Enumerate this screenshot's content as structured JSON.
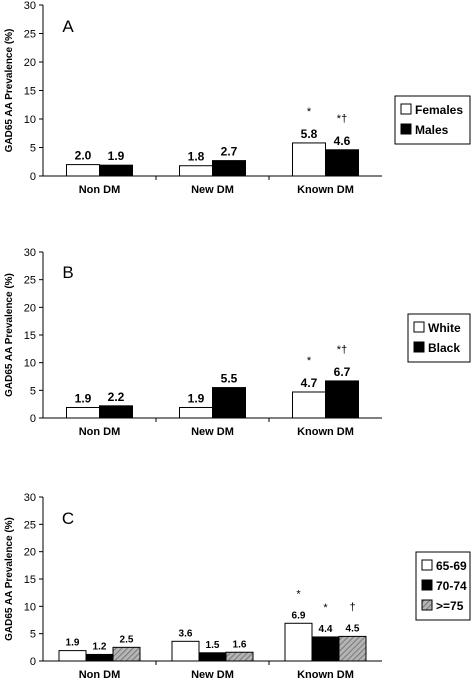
{
  "chart_data": [
    {
      "type": "bar",
      "panel_label": "A",
      "ylabel": "GAD65 AA Prevalence  (%)",
      "ylim": [
        0,
        30
      ],
      "yticks": [
        "0",
        "5",
        "10",
        "15",
        "20",
        "25",
        "30"
      ],
      "categories": [
        "Non DM",
        "New DM",
        "Known DM"
      ],
      "series": [
        {
          "name": "Females",
          "values": [
            2.0,
            1.8,
            5.8
          ],
          "labels": [
            "2.0",
            "1.8",
            "5.8"
          ],
          "color": "#ffffff"
        },
        {
          "name": "Males",
          "values": [
            1.9,
            2.7,
            4.6
          ],
          "labels": [
            "1.9",
            "2.7",
            "4.6"
          ],
          "color": "#000000"
        }
      ],
      "annotations": [
        {
          "category": 2,
          "series": 0,
          "text": "*"
        },
        {
          "category": 2,
          "series": 1,
          "text": "*†"
        }
      ],
      "legend": "right"
    },
    {
      "type": "bar",
      "panel_label": "B",
      "ylabel": "GAD65 AA Prevalence   (%)",
      "ylim": [
        0,
        30
      ],
      "yticks": [
        "0",
        "5",
        "10",
        "15",
        "20",
        "25",
        "30"
      ],
      "categories": [
        "Non DM",
        "New DM",
        "Known DM"
      ],
      "series": [
        {
          "name": "White",
          "values": [
            1.9,
            1.9,
            4.7
          ],
          "labels": [
            "1.9",
            "1.9",
            "4.7"
          ],
          "color": "#ffffff"
        },
        {
          "name": "Black",
          "values": [
            2.2,
            5.5,
            6.7
          ],
          "labels": [
            "2.2",
            "5.5",
            "6.7"
          ],
          "color": "#000000"
        }
      ],
      "annotations": [
        {
          "category": 2,
          "series": 0,
          "text": "*"
        },
        {
          "category": 2,
          "series": 1,
          "text": "*†"
        }
      ],
      "legend": "right"
    },
    {
      "type": "bar",
      "panel_label": "C",
      "ylabel": "GAD65 AA Prevalence   (%)",
      "ylim": [
        0,
        30
      ],
      "yticks": [
        "0",
        "5",
        "10",
        "15",
        "20",
        "25",
        "30"
      ],
      "categories": [
        "Non DM",
        "New DM",
        "Known DM"
      ],
      "series": [
        {
          "name": "65-69",
          "values": [
            1.9,
            3.6,
            6.9
          ],
          "labels": [
            "1.9",
            "3.6",
            "6.9"
          ],
          "color": "#ffffff"
        },
        {
          "name": "70-74",
          "values": [
            1.2,
            1.5,
            4.4
          ],
          "labels": [
            "1.2",
            "1.5",
            "4.4"
          ],
          "color": "#000000"
        },
        {
          "name": ">=75",
          "values": [
            2.5,
            1.6,
            4.5
          ],
          "labels": [
            "2.5",
            "1.6",
            "4.5"
          ],
          "color": "#a0a0a0",
          "pattern": "hatch"
        }
      ],
      "annotations": [
        {
          "category": 2,
          "series": 0,
          "text": "*"
        },
        {
          "category": 2,
          "series": 1,
          "text": "*"
        },
        {
          "category": 2,
          "series": 2,
          "text": "†"
        }
      ],
      "legend": "right"
    }
  ]
}
